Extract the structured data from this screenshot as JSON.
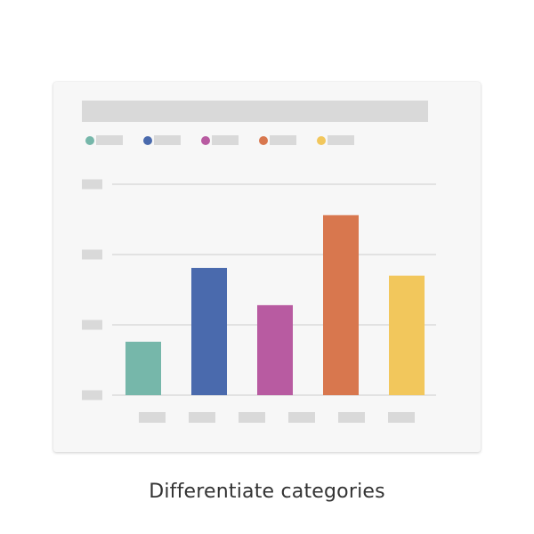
{
  "caption": "Differentiate categories",
  "colors": {
    "card_bg": "#f7f7f7",
    "placeholder": "#d9d9d9",
    "gridline": "#dcdcdc"
  },
  "chart_data": {
    "type": "bar",
    "title": "",
    "xlabel": "",
    "ylabel": "",
    "ylim": [
      0,
      3
    ],
    "yticks": [
      0,
      1,
      2,
      3
    ],
    "grid": true,
    "legend": "top-left",
    "legend_entries": [
      {
        "color": "#76b7aa"
      },
      {
        "color": "#4a6aad"
      },
      {
        "color": "#b85ba1"
      },
      {
        "color": "#d8774e"
      },
      {
        "color": "#f2c75c"
      }
    ],
    "x_tick_count": 6,
    "bars": [
      {
        "value": 0.76,
        "color": "#76b7aa"
      },
      {
        "value": 1.81,
        "color": "#4a6aad"
      },
      {
        "value": 1.28,
        "color": "#b85ba1"
      },
      {
        "value": 2.56,
        "color": "#d8774e"
      },
      {
        "value": 1.7,
        "color": "#f2c75c"
      }
    ]
  }
}
